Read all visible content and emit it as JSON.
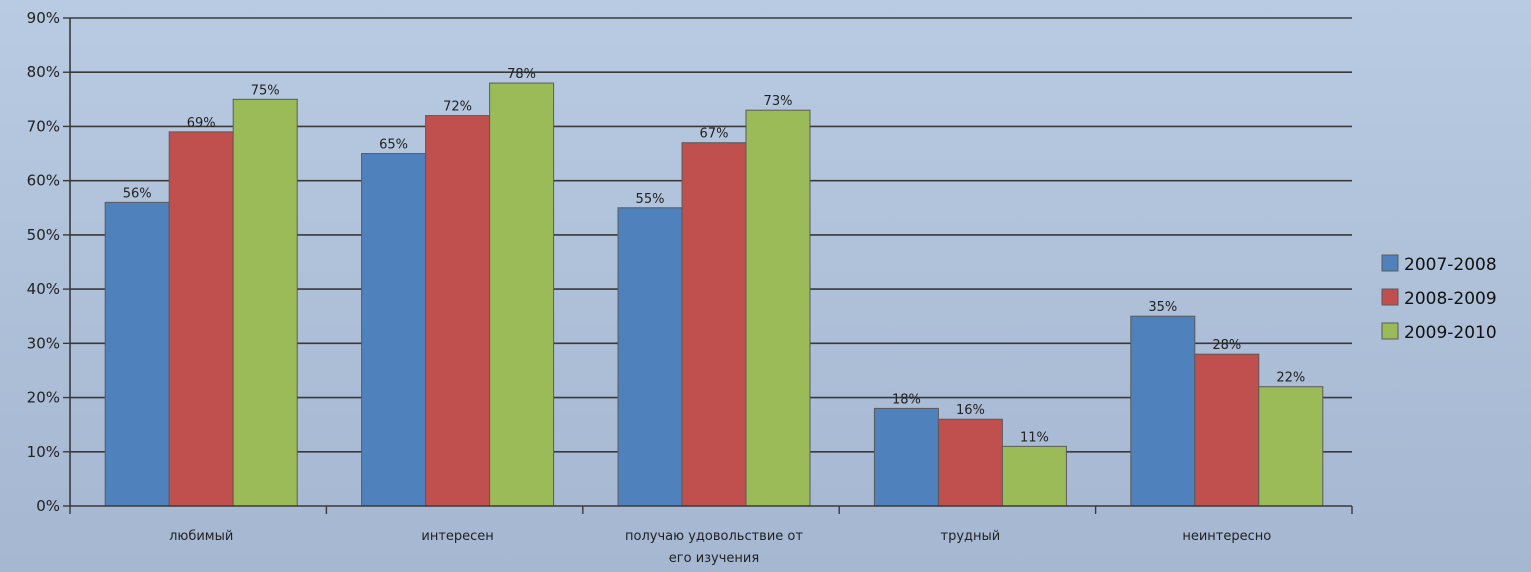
{
  "chart_data": {
    "type": "bar",
    "categories": [
      "любимый",
      "интересен",
      "получаю удовольствие от его изучения",
      "трудный",
      "неинтересно"
    ],
    "series": [
      {
        "name": "2007-2008",
        "color": "#4f81bd",
        "values": [
          56,
          65,
          55,
          18,
          35
        ]
      },
      {
        "name": "2008-2009",
        "color": "#c0504d",
        "values": [
          69,
          72,
          67,
          16,
          28
        ]
      },
      {
        "name": "2009-2010",
        "color": "#9bbb59",
        "values": [
          75,
          78,
          73,
          11,
          22
        ]
      }
    ],
    "ylim": [
      0,
      90
    ],
    "yticks": [
      0,
      10,
      20,
      30,
      40,
      50,
      60,
      70,
      80,
      90
    ],
    "y_format": "percent",
    "grid": true,
    "legend": "right",
    "data_labels": true
  }
}
